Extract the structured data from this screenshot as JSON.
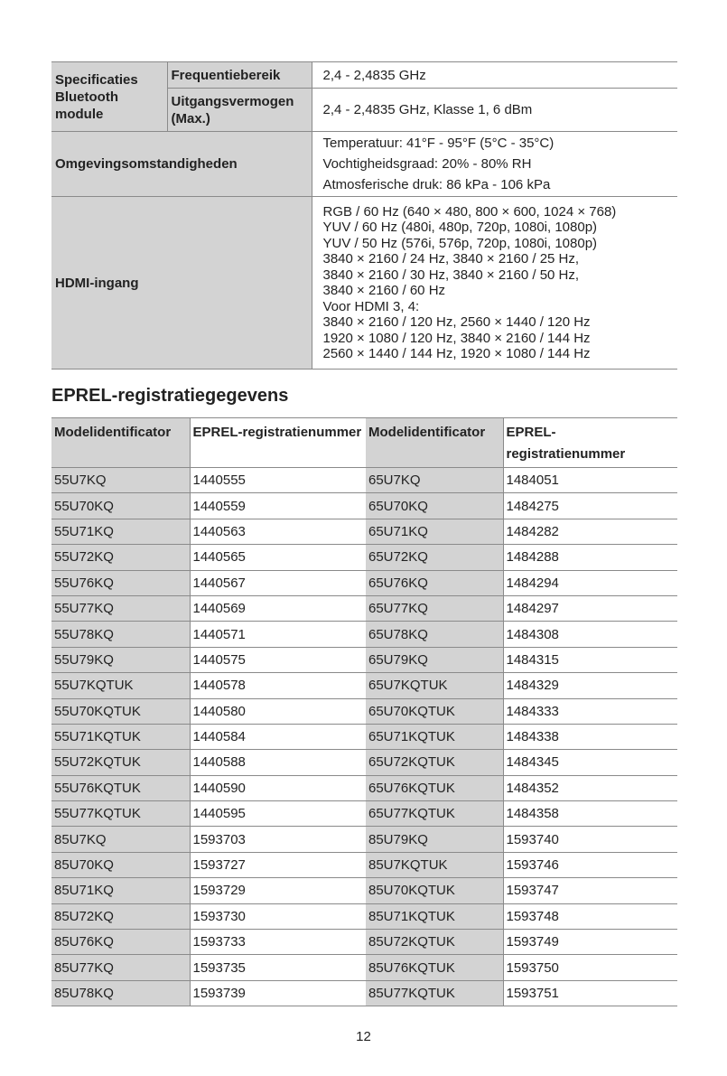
{
  "spec_table": {
    "bluetooth_label": "Specificaties Bluetooth module",
    "freq_label": "Frequentiebereik",
    "freq_value": "2,4 - 2,4835 GHz",
    "power_label": "Uitgangsvermogen (Max.)",
    "power_value": "2,4 - 2,4835 GHz, Klasse 1, 6 dBm",
    "env_label": "Omgevingsomstandigheden",
    "env_values": [
      "Temperatuur: 41°F - 95°F (5°C - 35°C)",
      "Vochtigheidsgraad: 20% - 80% RH",
      "Atmosferische druk: 86 kPa - 106 kPa"
    ],
    "hdmi_label": "HDMI-ingang",
    "hdmi_values": [
      "RGB / 60 Hz (640 × 480, 800 × 600, 1024 × 768)",
      "YUV / 60 Hz (480i, 480p, 720p, 1080i, 1080p)",
      "YUV / 50 Hz (576i, 576p, 720p, 1080i, 1080p)",
      "3840 × 2160 / 24 Hz, 3840 × 2160 / 25 Hz,",
      "3840 × 2160 / 30 Hz, 3840 × 2160 / 50 Hz,",
      "3840 × 2160 / 60 Hz",
      "Voor HDMI 3, 4:",
      "3840 × 2160 / 120 Hz, 2560 × 1440 / 120 Hz",
      "1920 × 1080 / 120 Hz, 3840 × 2160 / 144 Hz",
      "2560 × 1440 / 144 Hz, 1920 × 1080 / 144 Hz"
    ]
  },
  "eprel": {
    "heading": "EPREL-registratiegegevens",
    "headers": [
      "Modelidentificator",
      "EPREL-registratienummer",
      "Modelidentificator",
      "EPREL-registratienummer"
    ],
    "rows": [
      [
        "55U7KQ",
        "1440555",
        "65U7KQ",
        "1484051"
      ],
      [
        "55U70KQ",
        "1440559",
        "65U70KQ",
        "1484275"
      ],
      [
        "55U71KQ",
        "1440563",
        "65U71KQ",
        "1484282"
      ],
      [
        "55U72KQ",
        "1440565",
        "65U72KQ",
        "1484288"
      ],
      [
        "55U76KQ",
        "1440567",
        "65U76KQ",
        "1484294"
      ],
      [
        "55U77KQ",
        "1440569",
        "65U77KQ",
        "1484297"
      ],
      [
        "55U78KQ",
        "1440571",
        "65U78KQ",
        "1484308"
      ],
      [
        "55U79KQ",
        "1440575",
        "65U79KQ",
        "1484315"
      ],
      [
        "55U7KQTUK",
        "1440578",
        "65U7KQTUK",
        "1484329"
      ],
      [
        "55U70KQTUK",
        "1440580",
        "65U70KQTUK",
        "1484333"
      ],
      [
        "55U71KQTUK",
        "1440584",
        "65U71KQTUK",
        "1484338"
      ],
      [
        "55U72KQTUK",
        "1440588",
        "65U72KQTUK",
        "1484345"
      ],
      [
        "55U76KQTUK",
        "1440590",
        "65U76KQTUK",
        "1484352"
      ],
      [
        "55U77KQTUK",
        "1440595",
        "65U77KQTUK",
        "1484358"
      ],
      [
        "85U7KQ",
        "1593703",
        "85U79KQ",
        "1593740"
      ],
      [
        "85U70KQ",
        "1593727",
        "85U7KQTUK",
        "1593746"
      ],
      [
        "85U71KQ",
        "1593729",
        "85U70KQTUK",
        "1593747"
      ],
      [
        "85U72KQ",
        "1593730",
        "85U71KQTUK",
        "1593748"
      ],
      [
        "85U76KQ",
        "1593733",
        "85U72KQTUK",
        "1593749"
      ],
      [
        "85U77KQ",
        "1593735",
        "85U76KQTUK",
        "1593750"
      ],
      [
        "85U78KQ",
        "1593739",
        "85U77KQTUK",
        "1593751"
      ]
    ]
  },
  "page_number": "12"
}
